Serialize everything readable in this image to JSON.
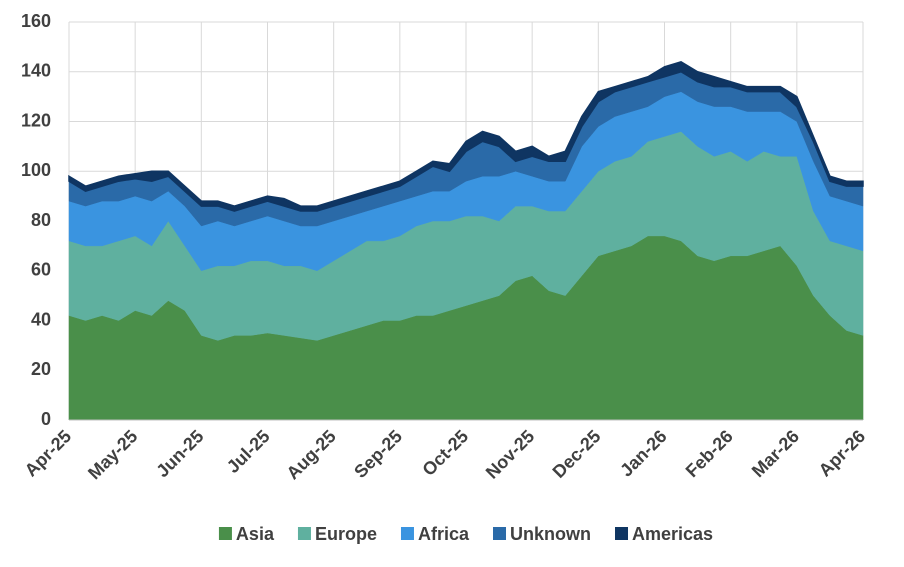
{
  "chart_data": {
    "type": "stacked_area",
    "categories": [
      "Apr-25",
      null,
      null,
      null,
      "May-25",
      null,
      null,
      null,
      "Jun-25",
      null,
      null,
      null,
      "Jul-25",
      null,
      null,
      null,
      "Aug-25",
      null,
      null,
      null,
      "Sep-25",
      null,
      null,
      null,
      "Oct-25",
      null,
      null,
      null,
      "Nov-25",
      null,
      null,
      null,
      "Dec-25",
      null,
      null,
      null,
      "Jan-26",
      null,
      null,
      null,
      "Feb-26",
      null,
      null,
      null,
      "Mar-26",
      null,
      null,
      null,
      "Apr-26"
    ],
    "series": [
      {
        "name": "Asia",
        "color": "#4a8f4a",
        "values": [
          42,
          40,
          42,
          40,
          44,
          42,
          48,
          44,
          34,
          32,
          34,
          34,
          35,
          34,
          33,
          32,
          34,
          36,
          38,
          40,
          40,
          42,
          42,
          44,
          46,
          48,
          50,
          56,
          58,
          52,
          50,
          58,
          66,
          68,
          70,
          74,
          74,
          72,
          66,
          64,
          66,
          66,
          68,
          70,
          62,
          50,
          42,
          36,
          34
        ]
      },
      {
        "name": "Europe",
        "color": "#5fb09f",
        "values": [
          30,
          30,
          28,
          32,
          30,
          28,
          32,
          26,
          26,
          30,
          28,
          30,
          29,
          28,
          29,
          28,
          30,
          32,
          34,
          32,
          34,
          36,
          38,
          36,
          36,
          34,
          30,
          30,
          28,
          32,
          34,
          34,
          34,
          36,
          36,
          38,
          40,
          44,
          44,
          42,
          42,
          38,
          40,
          36,
          44,
          34,
          30,
          34,
          34
        ]
      },
      {
        "name": "Africa",
        "color": "#3a94e0",
        "values": [
          16,
          16,
          18,
          16,
          16,
          18,
          12,
          16,
          18,
          18,
          16,
          16,
          18,
          18,
          16,
          18,
          16,
          14,
          12,
          14,
          14,
          12,
          12,
          12,
          14,
          16,
          18,
          14,
          12,
          12,
          12,
          18,
          18,
          18,
          18,
          14,
          16,
          16,
          18,
          20,
          18,
          20,
          16,
          18,
          14,
          20,
          18,
          18,
          18
        ]
      },
      {
        "name": "Unknown",
        "color": "#2a6aa8",
        "values": [
          8,
          6,
          6,
          8,
          7,
          8,
          6,
          6,
          8,
          6,
          6,
          6,
          6,
          6,
          6,
          6,
          6,
          6,
          6,
          6,
          6,
          8,
          10,
          8,
          12,
          14,
          12,
          4,
          8,
          8,
          8,
          8,
          10,
          10,
          10,
          10,
          8,
          8,
          8,
          8,
          8,
          8,
          8,
          8,
          6,
          8,
          6,
          6,
          8
        ]
      },
      {
        "name": "Americas",
        "color": "#0f3562",
        "values": [
          2,
          2,
          2,
          2,
          2,
          4,
          2,
          2,
          2,
          2,
          2,
          2,
          2,
          3,
          2,
          2,
          2,
          2,
          2,
          2,
          2,
          2,
          2,
          3,
          4,
          4,
          4,
          4,
          4,
          2,
          4,
          4,
          4,
          2,
          2,
          2,
          4,
          4,
          4,
          4,
          2,
          2,
          2,
          2,
          4,
          2,
          2,
          2,
          2
        ]
      }
    ],
    "ylim": [
      0,
      160
    ],
    "yticks": [
      0,
      20,
      40,
      60,
      80,
      100,
      120,
      140,
      160
    ],
    "grid": true,
    "legend": "bottom"
  }
}
